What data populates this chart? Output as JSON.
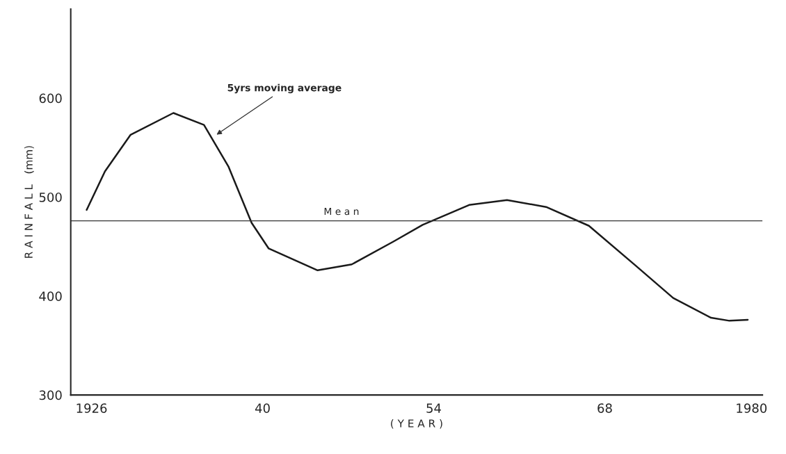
{
  "chart_data": {
    "type": "line",
    "xlabel": "( Y E A R )",
    "ylabel": "R A I N F A L L   (mm)",
    "xlim": [
      1924.3,
      1980.9
    ],
    "ylim": [
      300,
      690
    ],
    "xticks": [
      {
        "value": 1926,
        "label": "1926"
      },
      {
        "value": 1940,
        "label": "40"
      },
      {
        "value": 1954,
        "label": "54"
      },
      {
        "value": 1968,
        "label": "68"
      },
      {
        "value": 1980,
        "label": "1980"
      }
    ],
    "yticks": [
      300,
      400,
      500,
      600
    ],
    "grid": false,
    "legend": false,
    "marker": "none",
    "line_style": "solid",
    "series": [
      {
        "color": "#1a1a1a",
        "x": [
          1925.6,
          1927.1,
          1929.2,
          1932.7,
          1935.2,
          1937.2,
          1939.1,
          1940.5,
          1944.5,
          1947.3,
          1950.7,
          1953.1,
          1956.9,
          1960.0,
          1963.2,
          1966.7,
          1970.5,
          1973.6,
          1976.7,
          1978.2,
          1979.7
        ],
        "values": [
          487,
          526,
          563,
          585,
          573,
          531,
          474,
          448,
          426,
          432,
          455,
          472,
          492,
          497,
          490,
          471,
          431,
          398,
          378,
          375,
          376
        ]
      }
    ],
    "ref_lines": [
      {
        "axis": "y",
        "value": 476,
        "label": "M e a n",
        "color": "#333333",
        "line_style": "solid"
      }
    ],
    "annotations": [
      {
        "text": "5yrs moving average",
        "x": 1936.1,
        "y": 562
      }
    ]
  }
}
